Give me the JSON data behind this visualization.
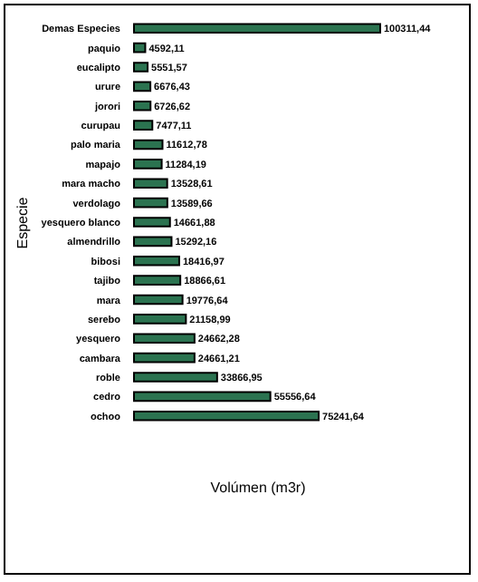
{
  "chart_data": {
    "type": "bar",
    "orientation": "horizontal",
    "xlabel": "Volúmen (m3r)",
    "ylabel": "Especie",
    "categories": [
      "Demas Especies",
      "paquio",
      "eucalipto",
      "urure",
      "jorori",
      "curupau",
      "palo maria",
      "mapajo",
      "mara macho",
      "verdolago",
      "yesquero blanco",
      "almendrillo",
      "bibosi",
      "tajibo",
      "mara",
      "serebo",
      "yesquero",
      "cambara",
      "roble",
      "cedro",
      "ochoo"
    ],
    "series": [
      {
        "color": "#2b7350",
        "values": [
          100311.44,
          4592.11,
          5551.57,
          6676.43,
          6726.62,
          7477.11,
          11612.78,
          11284.19,
          13528.61,
          13589.66,
          14661.88,
          15292.16,
          18416.97,
          18866.61,
          19776.64,
          21158.99,
          24662.28,
          24661.21,
          33866.95,
          55556.64,
          75241.64
        ],
        "value_labels": [
          "100311,44",
          "4592,11",
          "5551,57",
          "6676,43",
          "6726,62",
          "7477,11",
          "11612,78",
          "11284,19",
          "13528,61",
          "13589,66",
          "14661,88",
          "15292,16",
          "18416,97",
          "18866,61",
          "19776,64",
          "21158,99",
          "24662,28",
          "24661,21",
          "33866,95",
          "55556,64",
          "75241,64"
        ]
      }
    ]
  }
}
